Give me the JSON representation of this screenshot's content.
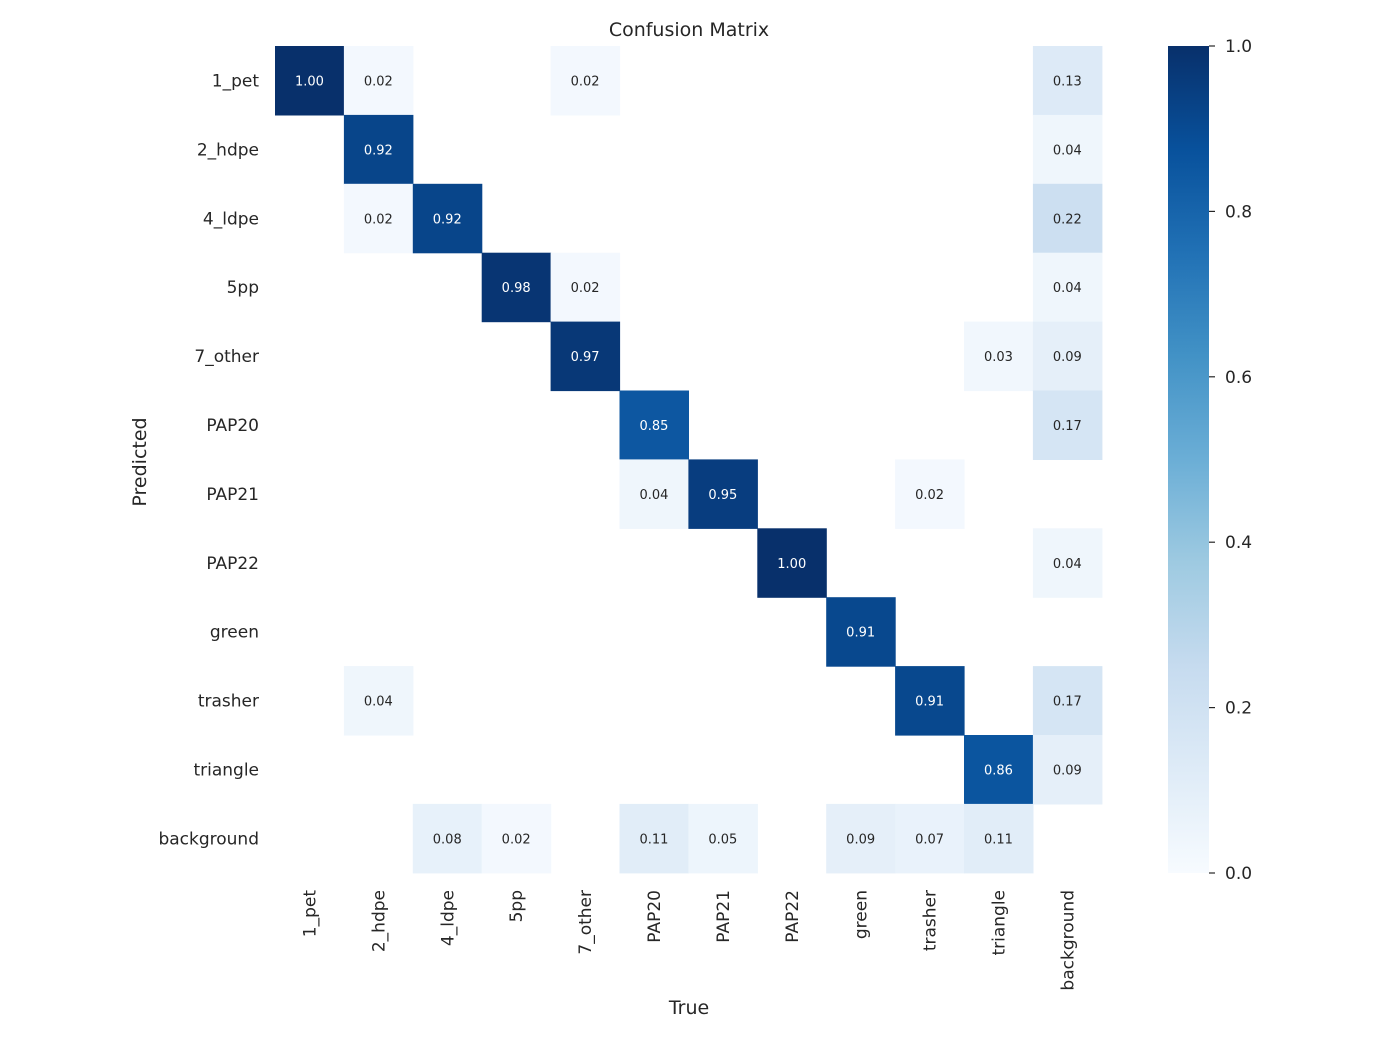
{
  "chart_data": {
    "type": "heatmap",
    "title": "Confusion Matrix",
    "xlabel": "True",
    "ylabel": "Predicted",
    "x_categories": [
      "1_pet",
      "2_hdpe",
      "4_ldpe",
      "5pp",
      "7_other",
      "PAP20",
      "PAP21",
      "PAP22",
      "green",
      "trasher",
      "triangle",
      "background"
    ],
    "y_categories": [
      "1_pet",
      "2_hdpe",
      "4_ldpe",
      "5pp",
      "7_other",
      "PAP20",
      "PAP21",
      "PAP22",
      "green",
      "trasher",
      "triangle",
      "background"
    ],
    "values": [
      [
        1.0,
        0.02,
        null,
        null,
        0.02,
        null,
        null,
        null,
        null,
        null,
        null,
        0.13
      ],
      [
        null,
        0.92,
        null,
        null,
        null,
        null,
        null,
        null,
        null,
        null,
        null,
        0.04
      ],
      [
        null,
        0.02,
        0.92,
        null,
        null,
        null,
        null,
        null,
        null,
        null,
        null,
        0.22
      ],
      [
        null,
        null,
        null,
        0.98,
        0.02,
        null,
        null,
        null,
        null,
        null,
        null,
        0.04
      ],
      [
        null,
        null,
        null,
        null,
        0.97,
        null,
        null,
        null,
        null,
        null,
        0.03,
        0.09
      ],
      [
        null,
        null,
        null,
        null,
        null,
        0.85,
        null,
        null,
        null,
        null,
        null,
        0.17
      ],
      [
        null,
        null,
        null,
        null,
        null,
        0.04,
        0.95,
        null,
        null,
        0.02,
        null,
        null
      ],
      [
        null,
        null,
        null,
        null,
        null,
        null,
        null,
        1.0,
        null,
        null,
        null,
        0.04
      ],
      [
        null,
        null,
        null,
        null,
        null,
        null,
        null,
        null,
        0.91,
        null,
        null,
        null
      ],
      [
        null,
        0.04,
        null,
        null,
        null,
        null,
        null,
        null,
        null,
        0.91,
        null,
        0.17
      ],
      [
        null,
        null,
        null,
        null,
        null,
        null,
        null,
        null,
        null,
        null,
        0.86,
        0.09
      ],
      [
        null,
        null,
        0.08,
        0.02,
        null,
        0.11,
        0.05,
        null,
        0.09,
        0.07,
        0.11,
        null
      ]
    ],
    "colorbar": {
      "range": [
        0.0,
        1.0
      ],
      "ticks": [
        "0.0",
        "0.2",
        "0.4",
        "0.6",
        "0.8",
        "1.0"
      ],
      "colormap": [
        "#f7fbff",
        "#deebf7",
        "#c6dbef",
        "#9ecae1",
        "#6baed6",
        "#4292c6",
        "#2171b5",
        "#08519c",
        "#08306b"
      ]
    },
    "grid": false
  }
}
